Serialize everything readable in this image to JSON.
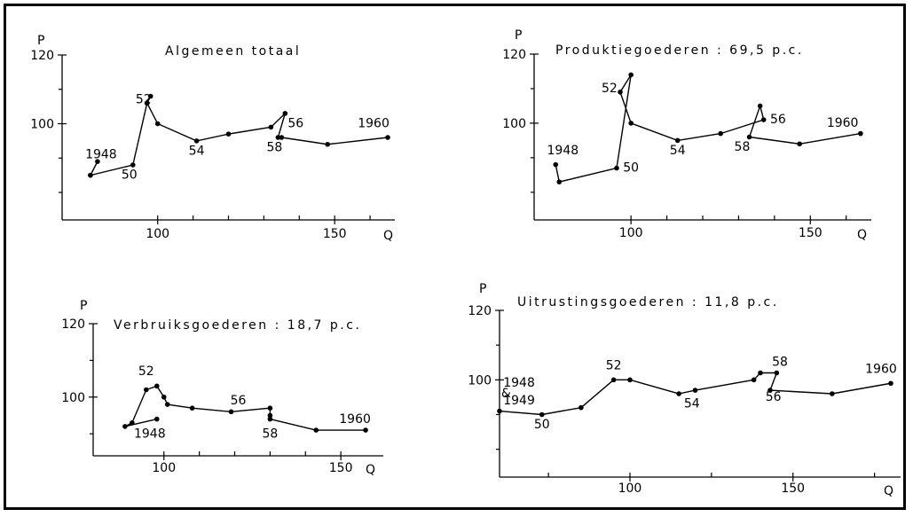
{
  "chart_data": [
    {
      "type": "line",
      "title": "Algemeen totaal",
      "xlabel": "Q",
      "ylabel": "P",
      "xlim": [
        73,
        167
      ],
      "ylim": [
        72,
        120
      ],
      "xticks": [
        100,
        150
      ],
      "yticks": [
        120,
        100
      ],
      "xtick_minor": [
        110,
        120,
        130,
        140,
        160
      ],
      "ytick_minor": [
        110,
        90,
        80
      ],
      "x": [
        81,
        83,
        81,
        93,
        97,
        98,
        97,
        100,
        111,
        120,
        132,
        136,
        134,
        135,
        148,
        165
      ],
      "y": [
        85,
        89,
        85,
        88,
        106,
        108,
        106,
        100,
        95,
        97,
        99,
        103,
        96,
        96,
        94,
        96
      ],
      "point_labels": [
        {
          "text": "1948",
          "x": 84,
          "y": 90
        },
        {
          "text": "50",
          "x": 92,
          "y": 84
        },
        {
          "text": "52",
          "x": 96,
          "y": 106
        },
        {
          "text": "54",
          "x": 111,
          "y": 91
        },
        {
          "text": "56",
          "x": 139,
          "y": 99
        },
        {
          "text": "58",
          "x": 133,
          "y": 92
        },
        {
          "text": "1960",
          "x": 161,
          "y": 99
        }
      ]
    },
    {
      "type": "line",
      "title": "Produktiegoederen : 69,5 p.c.",
      "xlabel": "Q",
      "ylabel": "P",
      "xlim": [
        73,
        167
      ],
      "ylim": [
        72,
        120
      ],
      "xticks": [
        100,
        150
      ],
      "yticks": [
        120,
        100
      ],
      "xtick_minor": [
        110,
        120,
        130,
        140,
        160
      ],
      "ytick_minor": [
        110,
        90,
        80
      ],
      "x": [
        79,
        80,
        96,
        100,
        97,
        100,
        113,
        125,
        137,
        136,
        133,
        147,
        164
      ],
      "y": [
        88,
        83,
        87,
        114,
        109,
        100,
        95,
        97,
        101,
        105,
        96,
        94,
        97
      ],
      "point_labels": [
        {
          "text": "1948",
          "x": 81,
          "y": 91
        },
        {
          "text": "50",
          "x": 100,
          "y": 86
        },
        {
          "text": "52",
          "x": 94,
          "y": 109
        },
        {
          "text": "54",
          "x": 113,
          "y": 91
        },
        {
          "text": "56",
          "x": 141,
          "y": 100
        },
        {
          "text": "58",
          "x": 131,
          "y": 92
        },
        {
          "text": "1960",
          "x": 159,
          "y": 99
        }
      ]
    },
    {
      "type": "line",
      "title": "Verbruiksgoederen : 18,7 p.c.",
      "xlabel": "Q",
      "ylabel": "P",
      "xlim": [
        80,
        162
      ],
      "ylim": [
        84,
        120
      ],
      "xticks": [
        100,
        150
      ],
      "yticks": [
        120,
        100
      ],
      "xtick_minor": [
        110,
        120,
        130,
        140
      ],
      "ytick_minor": [
        110,
        90
      ],
      "x": [
        98,
        89,
        91,
        95,
        98,
        100,
        101,
        108,
        119,
        130,
        130,
        130,
        143,
        157
      ],
      "y": [
        94,
        92,
        93,
        102,
        103,
        100,
        98,
        97,
        96,
        97,
        95,
        94,
        91,
        91
      ],
      "point_labels": [
        {
          "text": "1948",
          "x": 96,
          "y": 89
        },
        {
          "text": "52",
          "x": 95,
          "y": 106
        },
        {
          "text": "56",
          "x": 121,
          "y": 98
        },
        {
          "text": "58",
          "x": 130,
          "y": 89
        },
        {
          "text": "1960",
          "x": 154,
          "y": 93
        }
      ]
    },
    {
      "type": "line",
      "title": "Uitrustingsgoederen : 11,8 p.c.",
      "xlabel": "Q",
      "ylabel": "P",
      "xlim": [
        60,
        183
      ],
      "ylim": [
        72,
        120
      ],
      "xticks": [
        100,
        150
      ],
      "yticks": [
        120,
        100
      ],
      "xtick_minor": [
        75,
        125,
        175
      ],
      "ytick_minor": [
        110,
        90,
        80
      ],
      "x": [
        60,
        73,
        85,
        95,
        100,
        115,
        120,
        138,
        140,
        145,
        143,
        162,
        180
      ],
      "y": [
        91,
        90,
        92,
        100,
        100,
        96,
        97,
        100,
        102,
        102,
        97,
        96,
        99
      ],
      "point_labels": [
        {
          "text": "1948",
          "x": 66,
          "y": 98
        },
        {
          "text": "&",
          "x": 62,
          "y": 95
        },
        {
          "text": "1949",
          "x": 66,
          "y": 93
        },
        {
          "text": "50",
          "x": 73,
          "y": 86
        },
        {
          "text": "52",
          "x": 95,
          "y": 103
        },
        {
          "text": "54",
          "x": 119,
          "y": 92
        },
        {
          "text": "56",
          "x": 144,
          "y": 94
        },
        {
          "text": "58",
          "x": 146,
          "y": 104
        },
        {
          "text": "1960",
          "x": 177,
          "y": 102
        }
      ]
    }
  ]
}
